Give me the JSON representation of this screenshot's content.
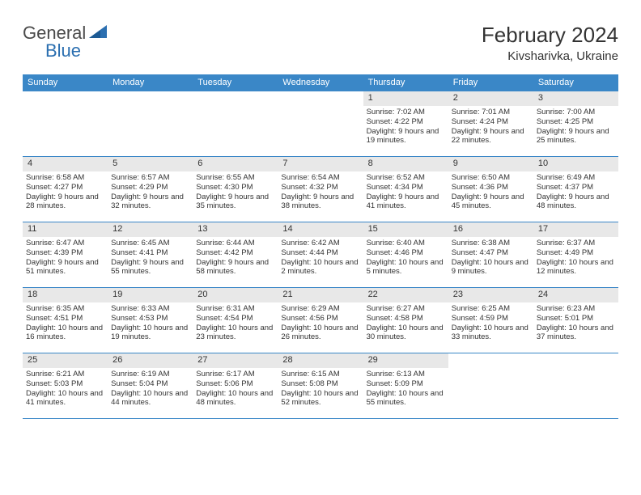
{
  "logo": {
    "general": "General",
    "blue": "Blue"
  },
  "title": "February 2024",
  "location": "Kivsharivka, Ukraine",
  "colors": {
    "header_bar": "#3a87c7",
    "daynum_bg": "#e8e8e8",
    "text": "#333333",
    "logo_blue": "#2b6fb0",
    "border": "#3a87c7",
    "background": "#ffffff"
  },
  "daynames": [
    "Sunday",
    "Monday",
    "Tuesday",
    "Wednesday",
    "Thursday",
    "Friday",
    "Saturday"
  ],
  "weeks": [
    [
      {
        "day": "",
        "sunrise": "",
        "sunset": "",
        "daylight": ""
      },
      {
        "day": "",
        "sunrise": "",
        "sunset": "",
        "daylight": ""
      },
      {
        "day": "",
        "sunrise": "",
        "sunset": "",
        "daylight": ""
      },
      {
        "day": "",
        "sunrise": "",
        "sunset": "",
        "daylight": ""
      },
      {
        "day": "1",
        "sunrise": "Sunrise: 7:02 AM",
        "sunset": "Sunset: 4:22 PM",
        "daylight": "Daylight: 9 hours and 19 minutes."
      },
      {
        "day": "2",
        "sunrise": "Sunrise: 7:01 AM",
        "sunset": "Sunset: 4:24 PM",
        "daylight": "Daylight: 9 hours and 22 minutes."
      },
      {
        "day": "3",
        "sunrise": "Sunrise: 7:00 AM",
        "sunset": "Sunset: 4:25 PM",
        "daylight": "Daylight: 9 hours and 25 minutes."
      }
    ],
    [
      {
        "day": "4",
        "sunrise": "Sunrise: 6:58 AM",
        "sunset": "Sunset: 4:27 PM",
        "daylight": "Daylight: 9 hours and 28 minutes."
      },
      {
        "day": "5",
        "sunrise": "Sunrise: 6:57 AM",
        "sunset": "Sunset: 4:29 PM",
        "daylight": "Daylight: 9 hours and 32 minutes."
      },
      {
        "day": "6",
        "sunrise": "Sunrise: 6:55 AM",
        "sunset": "Sunset: 4:30 PM",
        "daylight": "Daylight: 9 hours and 35 minutes."
      },
      {
        "day": "7",
        "sunrise": "Sunrise: 6:54 AM",
        "sunset": "Sunset: 4:32 PM",
        "daylight": "Daylight: 9 hours and 38 minutes."
      },
      {
        "day": "8",
        "sunrise": "Sunrise: 6:52 AM",
        "sunset": "Sunset: 4:34 PM",
        "daylight": "Daylight: 9 hours and 41 minutes."
      },
      {
        "day": "9",
        "sunrise": "Sunrise: 6:50 AM",
        "sunset": "Sunset: 4:36 PM",
        "daylight": "Daylight: 9 hours and 45 minutes."
      },
      {
        "day": "10",
        "sunrise": "Sunrise: 6:49 AM",
        "sunset": "Sunset: 4:37 PM",
        "daylight": "Daylight: 9 hours and 48 minutes."
      }
    ],
    [
      {
        "day": "11",
        "sunrise": "Sunrise: 6:47 AM",
        "sunset": "Sunset: 4:39 PM",
        "daylight": "Daylight: 9 hours and 51 minutes."
      },
      {
        "day": "12",
        "sunrise": "Sunrise: 6:45 AM",
        "sunset": "Sunset: 4:41 PM",
        "daylight": "Daylight: 9 hours and 55 minutes."
      },
      {
        "day": "13",
        "sunrise": "Sunrise: 6:44 AM",
        "sunset": "Sunset: 4:42 PM",
        "daylight": "Daylight: 9 hours and 58 minutes."
      },
      {
        "day": "14",
        "sunrise": "Sunrise: 6:42 AM",
        "sunset": "Sunset: 4:44 PM",
        "daylight": "Daylight: 10 hours and 2 minutes."
      },
      {
        "day": "15",
        "sunrise": "Sunrise: 6:40 AM",
        "sunset": "Sunset: 4:46 PM",
        "daylight": "Daylight: 10 hours and 5 minutes."
      },
      {
        "day": "16",
        "sunrise": "Sunrise: 6:38 AM",
        "sunset": "Sunset: 4:47 PM",
        "daylight": "Daylight: 10 hours and 9 minutes."
      },
      {
        "day": "17",
        "sunrise": "Sunrise: 6:37 AM",
        "sunset": "Sunset: 4:49 PM",
        "daylight": "Daylight: 10 hours and 12 minutes."
      }
    ],
    [
      {
        "day": "18",
        "sunrise": "Sunrise: 6:35 AM",
        "sunset": "Sunset: 4:51 PM",
        "daylight": "Daylight: 10 hours and 16 minutes."
      },
      {
        "day": "19",
        "sunrise": "Sunrise: 6:33 AM",
        "sunset": "Sunset: 4:53 PM",
        "daylight": "Daylight: 10 hours and 19 minutes."
      },
      {
        "day": "20",
        "sunrise": "Sunrise: 6:31 AM",
        "sunset": "Sunset: 4:54 PM",
        "daylight": "Daylight: 10 hours and 23 minutes."
      },
      {
        "day": "21",
        "sunrise": "Sunrise: 6:29 AM",
        "sunset": "Sunset: 4:56 PM",
        "daylight": "Daylight: 10 hours and 26 minutes."
      },
      {
        "day": "22",
        "sunrise": "Sunrise: 6:27 AM",
        "sunset": "Sunset: 4:58 PM",
        "daylight": "Daylight: 10 hours and 30 minutes."
      },
      {
        "day": "23",
        "sunrise": "Sunrise: 6:25 AM",
        "sunset": "Sunset: 4:59 PM",
        "daylight": "Daylight: 10 hours and 33 minutes."
      },
      {
        "day": "24",
        "sunrise": "Sunrise: 6:23 AM",
        "sunset": "Sunset: 5:01 PM",
        "daylight": "Daylight: 10 hours and 37 minutes."
      }
    ],
    [
      {
        "day": "25",
        "sunrise": "Sunrise: 6:21 AM",
        "sunset": "Sunset: 5:03 PM",
        "daylight": "Daylight: 10 hours and 41 minutes."
      },
      {
        "day": "26",
        "sunrise": "Sunrise: 6:19 AM",
        "sunset": "Sunset: 5:04 PM",
        "daylight": "Daylight: 10 hours and 44 minutes."
      },
      {
        "day": "27",
        "sunrise": "Sunrise: 6:17 AM",
        "sunset": "Sunset: 5:06 PM",
        "daylight": "Daylight: 10 hours and 48 minutes."
      },
      {
        "day": "28",
        "sunrise": "Sunrise: 6:15 AM",
        "sunset": "Sunset: 5:08 PM",
        "daylight": "Daylight: 10 hours and 52 minutes."
      },
      {
        "day": "29",
        "sunrise": "Sunrise: 6:13 AM",
        "sunset": "Sunset: 5:09 PM",
        "daylight": "Daylight: 10 hours and 55 minutes."
      },
      {
        "day": "",
        "sunrise": "",
        "sunset": "",
        "daylight": ""
      },
      {
        "day": "",
        "sunrise": "",
        "sunset": "",
        "daylight": ""
      }
    ]
  ]
}
